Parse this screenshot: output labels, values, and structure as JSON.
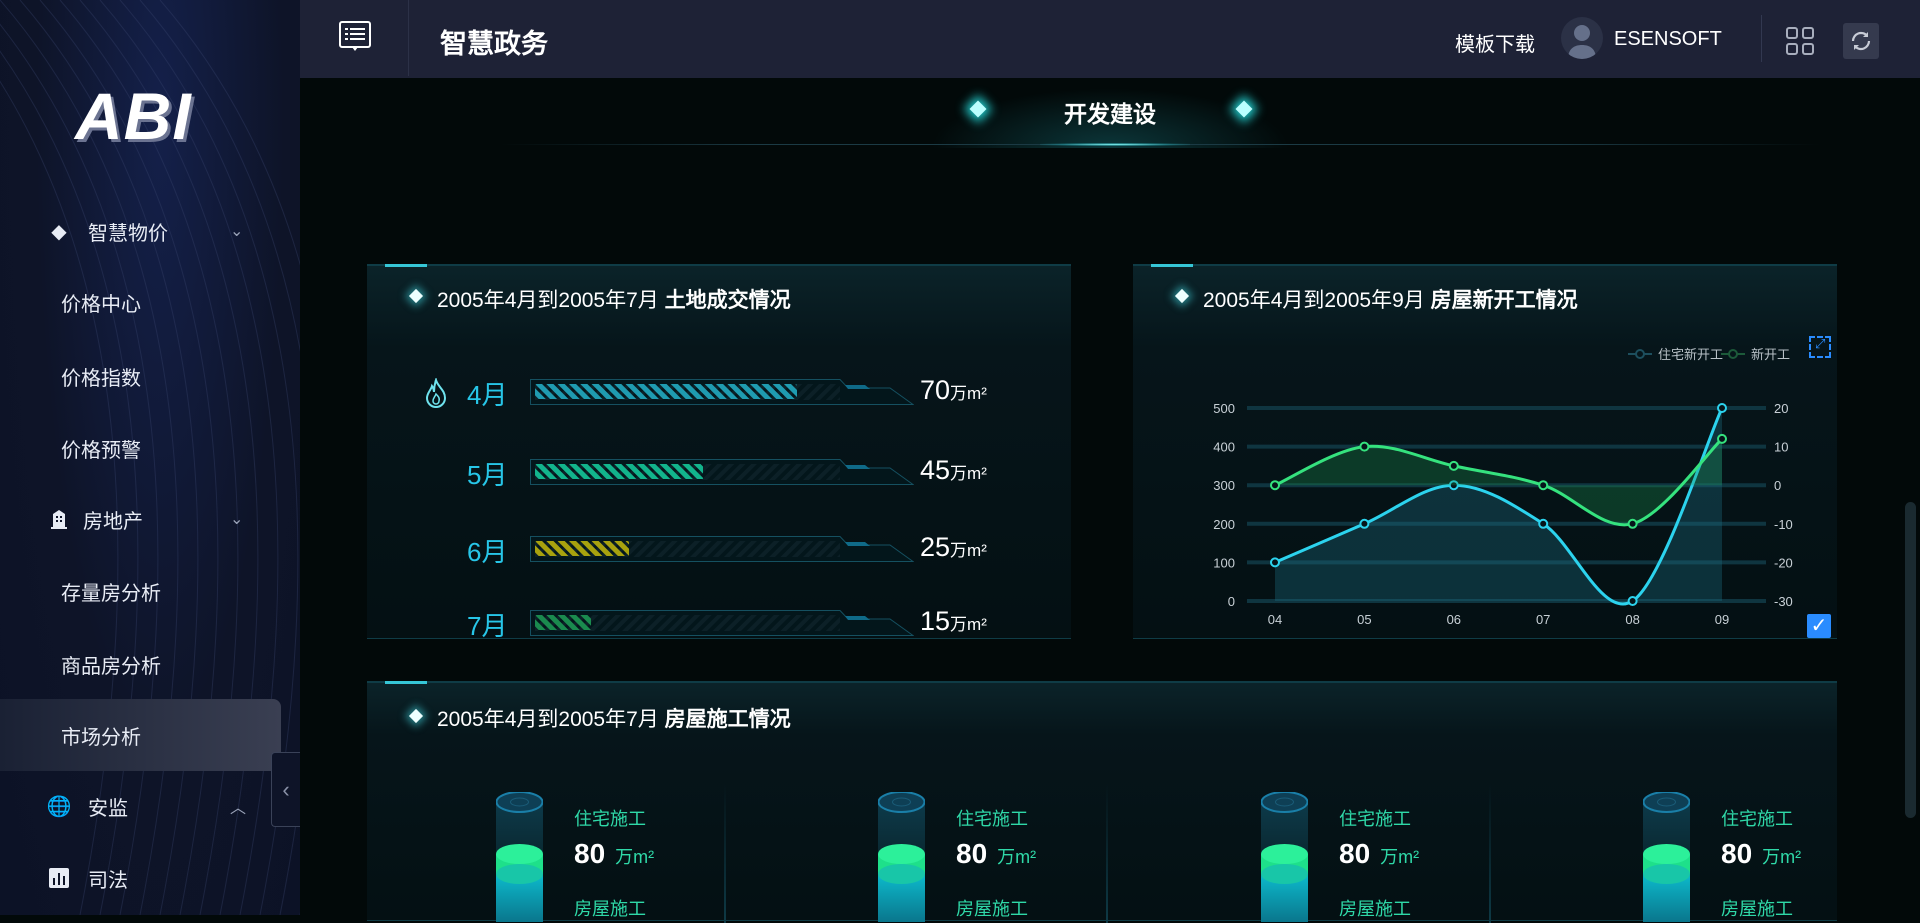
{
  "sidebar": {
    "logo": "ABI",
    "items": [
      {
        "label": "智慧物价",
        "icon": "diamond-icon",
        "expanded": true
      },
      {
        "label": "价格中心"
      },
      {
        "label": "价格指数"
      },
      {
        "label": "价格预警"
      },
      {
        "label": "房地产",
        "icon": "building-icon",
        "expanded": true
      },
      {
        "label": "存量房分析"
      },
      {
        "label": "商品房分析"
      },
      {
        "label": "市场分析",
        "active": true
      },
      {
        "label": "安监",
        "icon": "globe-icon",
        "expanded": false
      },
      {
        "label": "司法",
        "icon": "bar-chart-icon"
      }
    ]
  },
  "header": {
    "title": "智慧政务",
    "template_download": "模板下载",
    "username": "ESENSOFT"
  },
  "page": {
    "title": "开发建设"
  },
  "land_panel": {
    "title_prefix": "2005年4月到2005年7月",
    "title_main": "土地成交情况",
    "unit": "万m²",
    "rows": [
      {
        "month": "4月",
        "value": "70",
        "percent": 70,
        "color": "#1f9bb0"
      },
      {
        "month": "5月",
        "value": "45",
        "percent": 45,
        "color": "#12b48c"
      },
      {
        "month": "6月",
        "value": "25",
        "percent": 25,
        "color": "#a8a20e"
      },
      {
        "month": "7月",
        "value": "15",
        "percent": 15,
        "color": "#1a8a4e"
      }
    ]
  },
  "housing_panel": {
    "title_prefix": "2005年4月到2005年9月",
    "title_main": "房屋新开工情况"
  },
  "chart_data": {
    "type": "line",
    "categories": [
      "04",
      "05",
      "06",
      "07",
      "08",
      "09"
    ],
    "series": [
      {
        "name": "住宅新开工",
        "axis": "left",
        "values": [
          100,
          200,
          300,
          200,
          0,
          500
        ],
        "color": "#2cd3ee"
      },
      {
        "name": "新开工",
        "axis": "right",
        "values": [
          0,
          10,
          5,
          0,
          -10,
          12
        ],
        "color": "#35e27e"
      }
    ],
    "yleft": {
      "ticks": [
        "0",
        "100",
        "200",
        "300",
        "400",
        "500"
      ],
      "range": [
        0,
        500
      ]
    },
    "yright": {
      "ticks": [
        "-30",
        "-20",
        "-10",
        "0",
        "10",
        "20"
      ],
      "range": [
        -30,
        20
      ]
    },
    "smooth": true,
    "area": true,
    "grid": true,
    "legend": "top-right"
  },
  "construction_panel": {
    "title_prefix": "2005年4月到2005年7月",
    "title_main": "房屋施工情况",
    "items": [
      {
        "label1": "住宅施工",
        "value": "80",
        "unit": "万m²",
        "label2": "房屋施工"
      },
      {
        "label1": "住宅施工",
        "value": "80",
        "unit": "万m²",
        "label2": "房屋施工"
      },
      {
        "label1": "住宅施工",
        "value": "80",
        "unit": "万m²",
        "label2": "房屋施工"
      },
      {
        "label1": "住宅施工",
        "value": "80",
        "unit": "万m²",
        "label2": "房屋施工"
      }
    ]
  }
}
